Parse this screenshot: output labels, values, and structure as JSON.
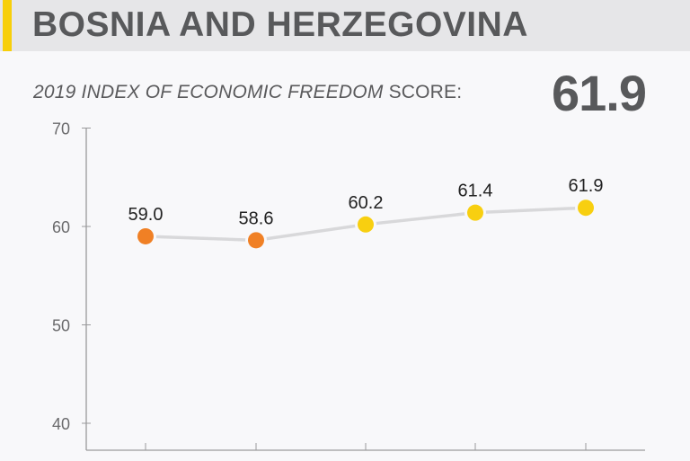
{
  "header": {
    "country": "BOSNIA AND HERZEGOVINA",
    "subtitle_italic": "2019 INDEX OF ECONOMIC FREEDOM",
    "subtitle_rest": " SCORE:",
    "score": "61.9"
  },
  "colors": {
    "accent": "#f7cf0a",
    "orange": "#f08025",
    "yellow": "#f8cf10",
    "line": "#d8d8da",
    "axis": "#9a9a9c",
    "text": "#58595b"
  },
  "chart_data": {
    "type": "line",
    "title": "2019 Index of Economic Freedom Score: 61.9",
    "xlabel": "",
    "ylabel": "",
    "ylim": [
      38,
      70
    ],
    "yticks": [
      40,
      50,
      60,
      70
    ],
    "categories": [
      "",
      "",
      "",
      "",
      ""
    ],
    "series": [
      {
        "name": "Score",
        "values": [
          59.0,
          58.6,
          60.2,
          61.4,
          61.9
        ],
        "labels": [
          "59.0",
          "58.6",
          "60.2",
          "61.4",
          "61.9"
        ],
        "point_colors": [
          "#f08025",
          "#f08025",
          "#f8cf10",
          "#f8cf10",
          "#f8cf10"
        ]
      }
    ],
    "grid": false,
    "legend": "none"
  }
}
